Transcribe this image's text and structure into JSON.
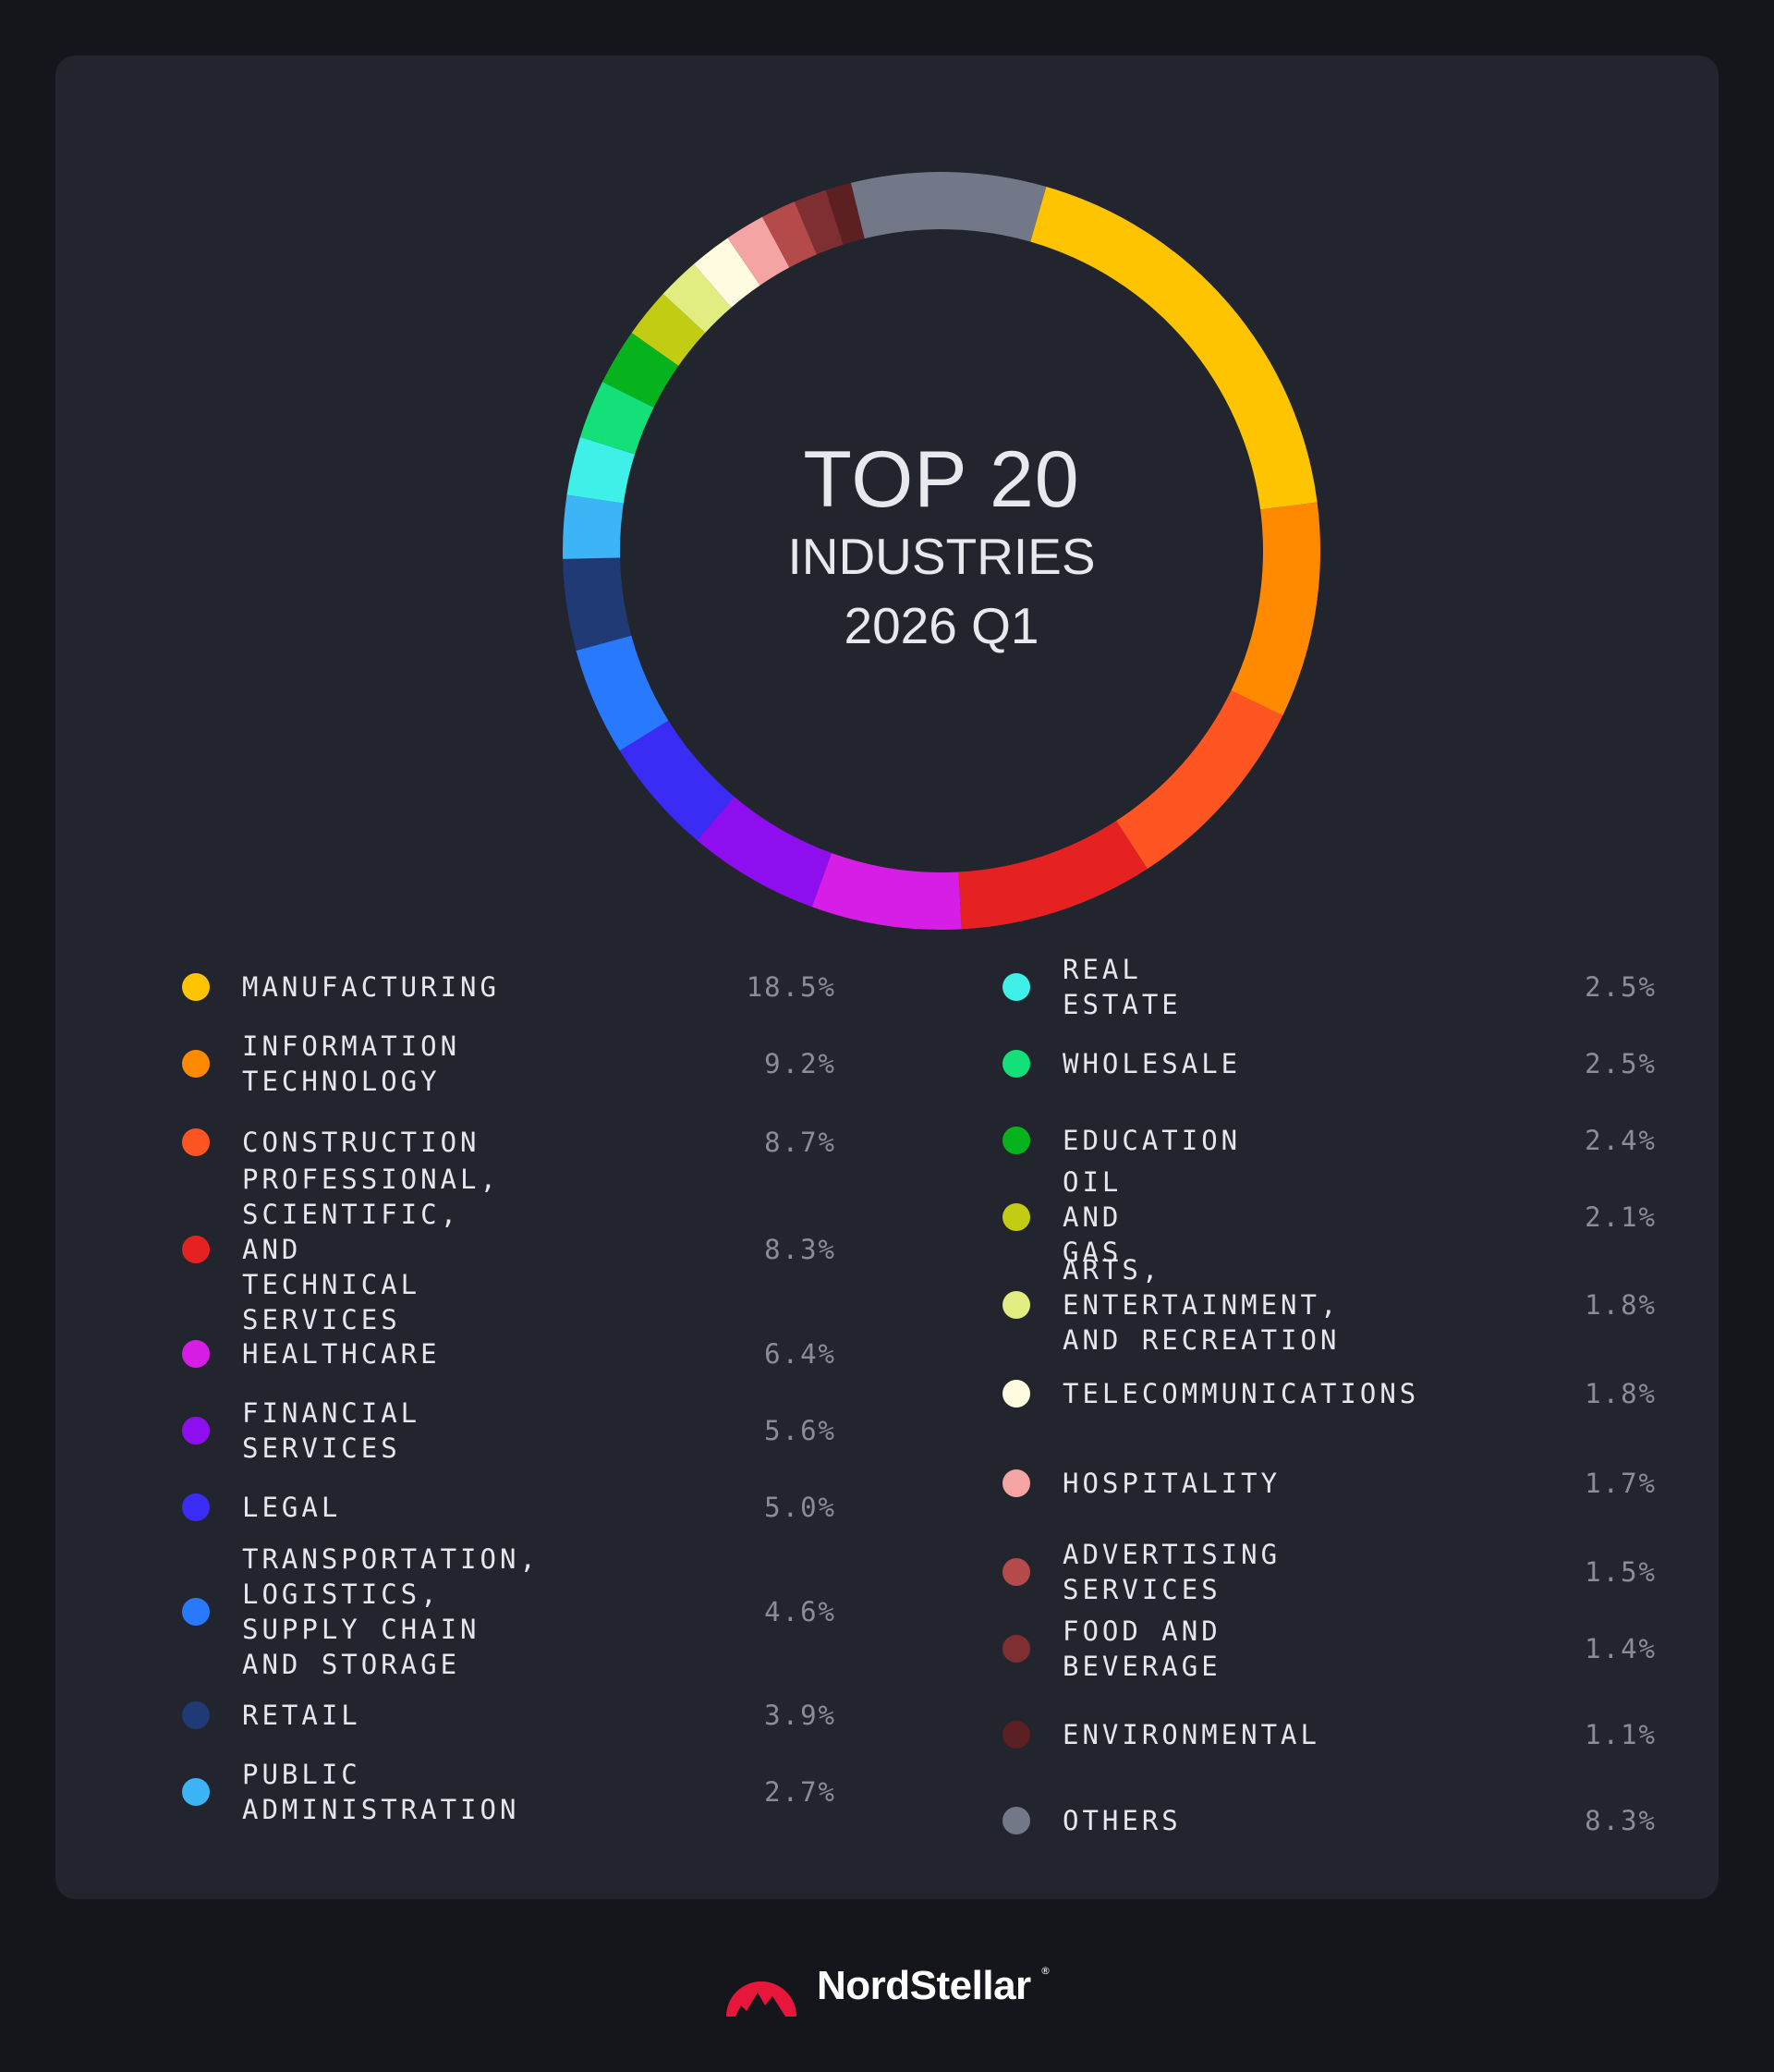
{
  "chart_data": {
    "type": "pie",
    "title": "TOP 20",
    "subtitle": "INDUSTRIES",
    "period": "2026 Q1",
    "series": [
      {
        "label": "MANUFACTURING",
        "value": 18.5,
        "value_label": "18.5%",
        "color": "#ffc400"
      },
      {
        "label": "INFORMATION TECHNOLOGY",
        "value": 9.2,
        "value_label": "9.2%",
        "color": "#ff8a00"
      },
      {
        "label": "CONSTRUCTION",
        "value": 8.7,
        "value_label": "8.7%",
        "color": "#ff5522"
      },
      {
        "label": "PROFESSIONAL,\nSCIENTIFIC, AND\nTECHNICAL SERVICES",
        "value": 8.3,
        "value_label": "8.3%",
        "color": "#e52121"
      },
      {
        "label": "HEALTHCARE",
        "value": 6.4,
        "value_label": "6.4%",
        "color": "#d61ee6"
      },
      {
        "label": "FINANCIAL SERVICES",
        "value": 5.6,
        "value_label": "5.6%",
        "color": "#8f0ef0"
      },
      {
        "label": "LEGAL",
        "value": 5.0,
        "value_label": "5.0%",
        "color": "#3b2cf5"
      },
      {
        "label": "TRANSPORTATION,\nLOGISTICS, SUPPLY CHAIN\nAND STORAGE",
        "value": 4.6,
        "value_label": "4.6%",
        "color": "#2979ff"
      },
      {
        "label": "RETAIL",
        "value": 3.9,
        "value_label": "3.9%",
        "color": "#1f3a74"
      },
      {
        "label": "PUBLIC ADMINISTRATION",
        "value": 2.7,
        "value_label": "2.7%",
        "color": "#3db4f5"
      },
      {
        "label": "REAL ESTATE",
        "value": 2.5,
        "value_label": "2.5%",
        "color": "#3ff0e8"
      },
      {
        "label": "WHOLESALE",
        "value": 2.5,
        "value_label": "2.5%",
        "color": "#14e07a"
      },
      {
        "label": "EDUCATION",
        "value": 2.4,
        "value_label": "2.4%",
        "color": "#06b31c"
      },
      {
        "label": "OIL AND GAS",
        "value": 2.1,
        "value_label": "2.1%",
        "color": "#c2cc12"
      },
      {
        "label": "ARTS, ENTERTAINMENT,\nAND RECREATION",
        "value": 1.8,
        "value_label": "1.8%",
        "color": "#e1ed80"
      },
      {
        "label": "TELECOMMUNICATIONS",
        "value": 1.8,
        "value_label": "1.8%",
        "color": "#fffbe0"
      },
      {
        "label": "HOSPITALITY",
        "value": 1.7,
        "value_label": "1.7%",
        "color": "#f4a5a3"
      },
      {
        "label": "ADVERTISING SERVICES",
        "value": 1.5,
        "value_label": "1.5%",
        "color": "#b54a4a"
      },
      {
        "label": "FOOD AND BEVERAGE",
        "value": 1.4,
        "value_label": "1.4%",
        "color": "#7f2e31"
      },
      {
        "label": "ENVIRONMENTAL",
        "value": 1.1,
        "value_label": "1.1%",
        "color": "#5c1f22"
      },
      {
        "label": "OTHERS",
        "value": 8.3,
        "value_label": "8.3%",
        "color": "#737889"
      }
    ]
  },
  "brand": {
    "name": "NordStellar",
    "mark": "®",
    "logo_color": "#e8163a"
  }
}
